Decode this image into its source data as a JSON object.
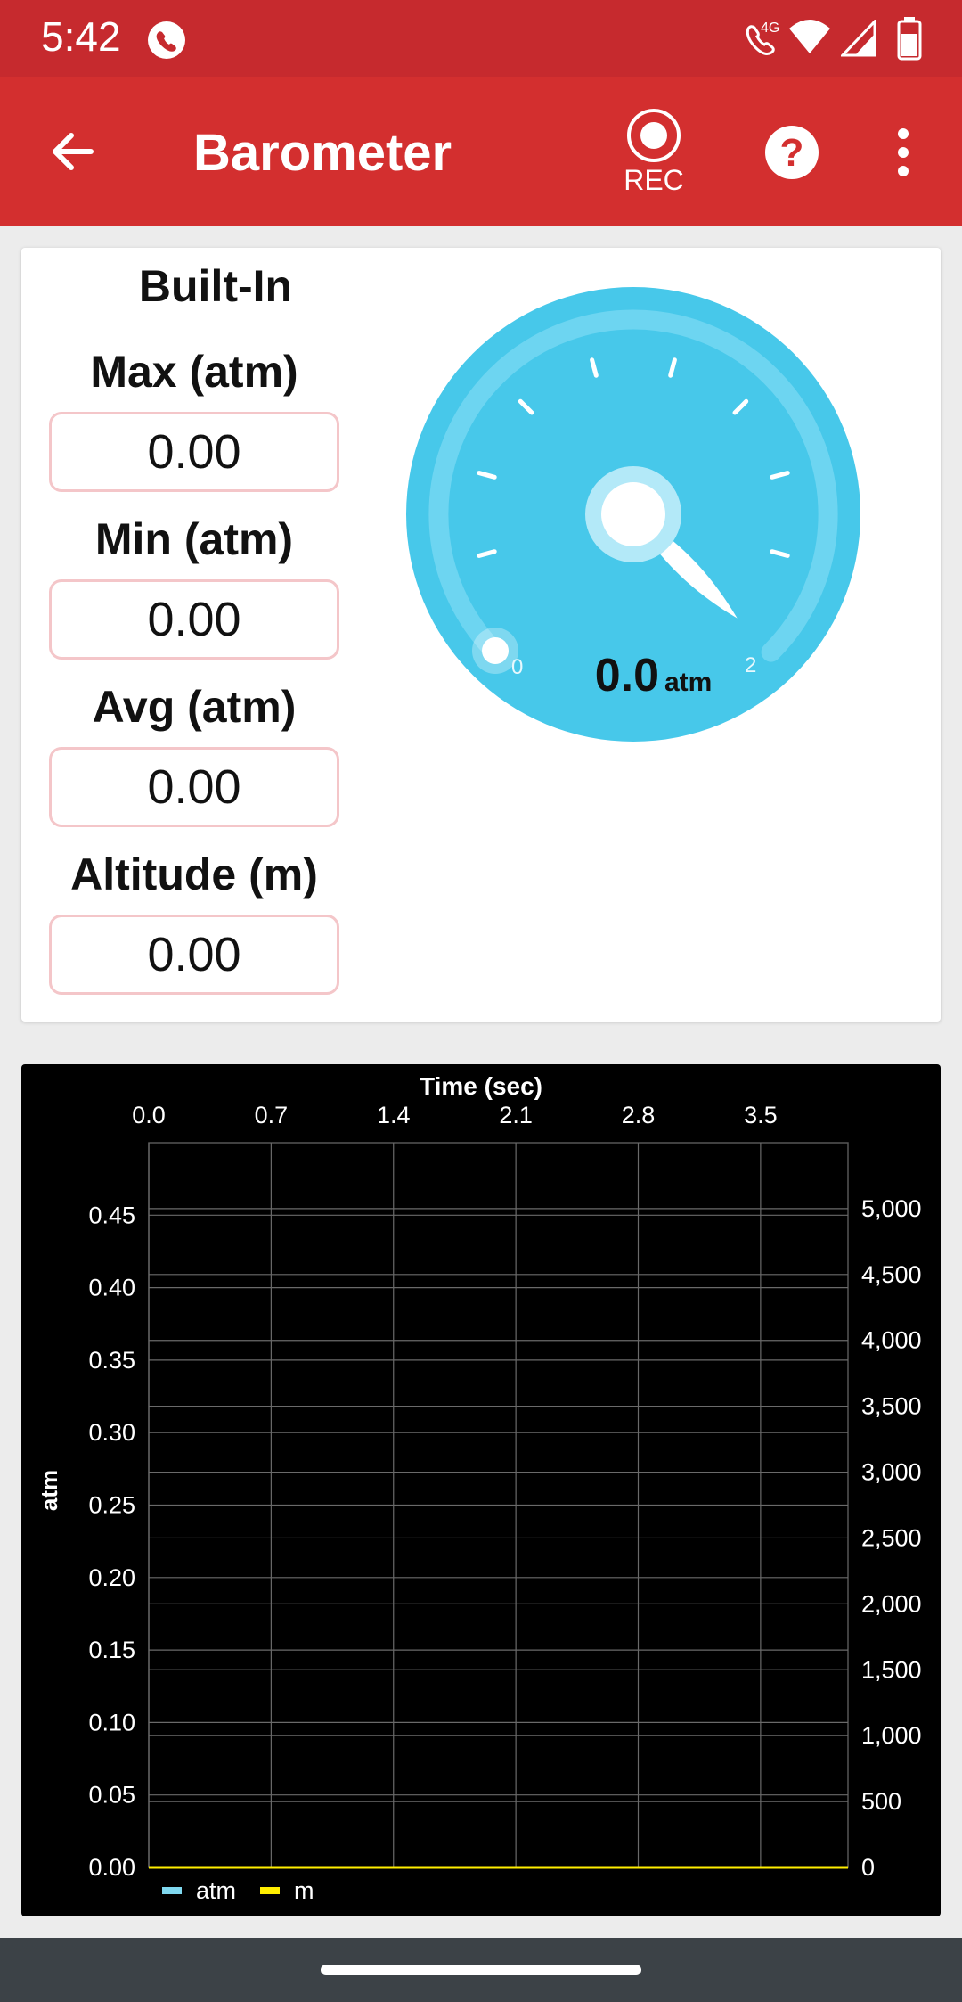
{
  "status_bar": {
    "time": "5:42",
    "icons": [
      "phone-call-icon",
      "wifi-calling-4g-icon",
      "wifi-icon",
      "signal-icon",
      "battery-icon"
    ],
    "network_label": "4G"
  },
  "app_bar": {
    "title": "Barometer",
    "rec_label": "REC",
    "color": "#d32f2f"
  },
  "stats": {
    "section_title": "Built-In",
    "max_label": "Max (atm)",
    "max_value": "0.00",
    "min_label": "Min (atm)",
    "min_value": "0.00",
    "avg_label": "Avg (atm)",
    "avg_value": "0.00",
    "altitude_label": "Altitude (m)",
    "altitude_value": "0.00"
  },
  "gauge": {
    "value": "0.0",
    "unit": "atm",
    "min_label": "0",
    "max_label": "2",
    "level_fraction": 0,
    "color": "#47c8ea"
  },
  "chart_data": {
    "type": "line",
    "title": "Time (sec)",
    "x_ticks": [
      "0.0",
      "0.7",
      "1.4",
      "2.1",
      "2.8",
      "3.5"
    ],
    "ylabel_left": "atm",
    "y_left_ticks": [
      "0.00",
      "0.05",
      "0.10",
      "0.15",
      "0.20",
      "0.25",
      "0.30",
      "0.35",
      "0.40",
      "0.45"
    ],
    "y_right_ticks": [
      "0",
      "500",
      "1,000",
      "1,500",
      "2,000",
      "2,500",
      "3,000",
      "3,500",
      "4,000",
      "4,500",
      "5,000"
    ],
    "ylim_left": [
      0,
      0.5
    ],
    "ylim_right": [
      0,
      5500
    ],
    "xlim": [
      0,
      4.0
    ],
    "grid": true,
    "legend_position": "bottom-left",
    "series": [
      {
        "name": "atm",
        "color": "#7fd8ef",
        "x": [
          0,
          4.0
        ],
        "values": [
          0,
          0
        ]
      },
      {
        "name": "m",
        "color": "#ffee00",
        "x": [
          0,
          4.0
        ],
        "values": [
          0,
          0
        ]
      }
    ]
  }
}
